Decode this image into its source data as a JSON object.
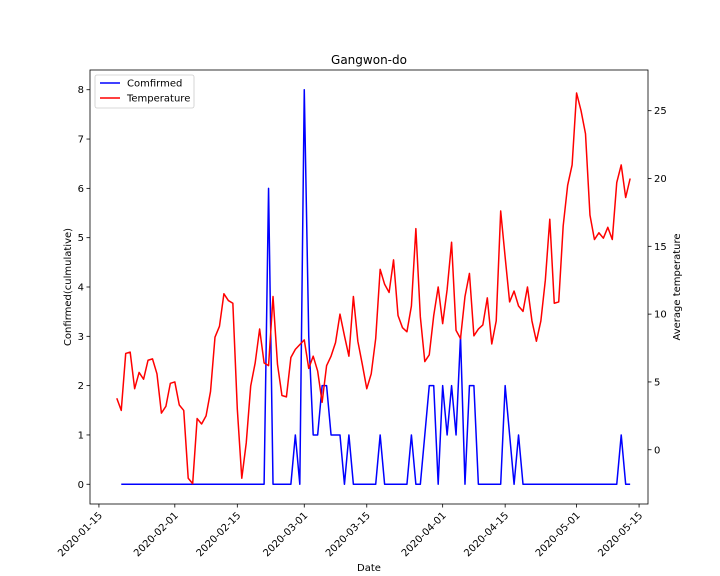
{
  "chart_data": {
    "type": "line",
    "title": "Gangwon-do",
    "xlabel": "Date",
    "ylabel_left": "Confirmed(culmulative)",
    "ylabel_right": "Average temperature",
    "x_ticks": [
      "2020-01-15",
      "2020-02-01",
      "2020-02-15",
      "2020-03-01",
      "2020-03-15",
      "2020-04-01",
      "2020-04-15",
      "2020-05-01",
      "2020-05-15"
    ],
    "y_left_ticks": [
      0,
      1,
      2,
      3,
      4,
      5,
      6,
      7,
      8
    ],
    "y_right_ticks": [
      0,
      5,
      10,
      15,
      20,
      25
    ],
    "xlim": [
      "2020-01-13",
      "2020-05-17"
    ],
    "ylim_left": [
      -0.4,
      8.4
    ],
    "ylim_right": [
      -4.0,
      28.0
    ],
    "legend": {
      "placement": "top-left",
      "entries": [
        "Comfirmed",
        "Temperature"
      ]
    },
    "colors": {
      "Comfirmed": "#0000ff",
      "Temperature": "#ff0000"
    },
    "series": [
      {
        "name": "Comfirmed",
        "axis": "left",
        "points": [
          [
            "2020-01-20",
            0
          ],
          [
            "2020-02-21",
            0
          ],
          [
            "2020-02-22",
            6
          ],
          [
            "2020-02-23",
            0
          ],
          [
            "2020-02-27",
            0
          ],
          [
            "2020-02-28",
            1
          ],
          [
            "2020-02-29",
            0
          ],
          [
            "2020-03-01",
            8
          ],
          [
            "2020-03-02",
            3
          ],
          [
            "2020-03-03",
            1
          ],
          [
            "2020-03-04",
            1
          ],
          [
            "2020-03-05",
            2
          ],
          [
            "2020-03-06",
            2
          ],
          [
            "2020-03-07",
            1
          ],
          [
            "2020-03-09",
            1
          ],
          [
            "2020-03-10",
            0
          ],
          [
            "2020-03-11",
            1
          ],
          [
            "2020-03-12",
            0
          ],
          [
            "2020-03-17",
            0
          ],
          [
            "2020-03-18",
            1
          ],
          [
            "2020-03-19",
            0
          ],
          [
            "2020-03-24",
            0
          ],
          [
            "2020-03-25",
            1
          ],
          [
            "2020-03-26",
            0
          ],
          [
            "2020-03-27",
            0
          ],
          [
            "2020-03-29",
            2
          ],
          [
            "2020-03-30",
            2
          ],
          [
            "2020-03-31",
            0
          ],
          [
            "2020-04-01",
            2
          ],
          [
            "2020-04-02",
            1
          ],
          [
            "2020-04-03",
            2
          ],
          [
            "2020-04-04",
            1
          ],
          [
            "2020-04-05",
            3
          ],
          [
            "2020-04-06",
            0
          ],
          [
            "2020-04-07",
            2
          ],
          [
            "2020-04-08",
            2
          ],
          [
            "2020-04-09",
            0
          ],
          [
            "2020-04-14",
            0
          ],
          [
            "2020-04-15",
            2
          ],
          [
            "2020-04-16",
            1
          ],
          [
            "2020-04-17",
            0
          ],
          [
            "2020-04-18",
            1
          ],
          [
            "2020-04-19",
            0
          ],
          [
            "2020-05-10",
            0
          ],
          [
            "2020-05-11",
            1
          ],
          [
            "2020-05-12",
            0
          ],
          [
            "2020-05-13",
            0
          ]
        ]
      },
      {
        "name": "Temperature",
        "axis": "right",
        "points": [
          [
            "2020-01-19",
            3.8
          ],
          [
            "2020-01-20",
            2.9
          ],
          [
            "2020-01-21",
            7.1
          ],
          [
            "2020-01-22",
            7.2
          ],
          [
            "2020-01-23",
            4.5
          ],
          [
            "2020-01-24",
            5.7
          ],
          [
            "2020-01-25",
            5.2
          ],
          [
            "2020-01-26",
            6.6
          ],
          [
            "2020-01-27",
            6.7
          ],
          [
            "2020-01-28",
            5.6
          ],
          [
            "2020-01-29",
            2.7
          ],
          [
            "2020-01-30",
            3.2
          ],
          [
            "2020-01-31",
            4.9
          ],
          [
            "2020-02-01",
            5.0
          ],
          [
            "2020-02-02",
            3.3
          ],
          [
            "2020-02-03",
            2.9
          ],
          [
            "2020-02-04",
            -2.1
          ],
          [
            "2020-02-05",
            -2.5
          ],
          [
            "2020-02-06",
            2.3
          ],
          [
            "2020-02-07",
            1.9
          ],
          [
            "2020-02-08",
            2.5
          ],
          [
            "2020-02-09",
            4.3
          ],
          [
            "2020-02-10",
            8.3
          ],
          [
            "2020-02-11",
            9.1
          ],
          [
            "2020-02-12",
            11.5
          ],
          [
            "2020-02-13",
            11.0
          ],
          [
            "2020-02-14",
            10.8
          ],
          [
            "2020-02-15",
            3.0
          ],
          [
            "2020-02-16",
            -2.1
          ],
          [
            "2020-02-17",
            0.5
          ],
          [
            "2020-02-18",
            4.7
          ],
          [
            "2020-02-19",
            6.4
          ],
          [
            "2020-02-20",
            8.9
          ],
          [
            "2020-02-21",
            6.4
          ],
          [
            "2020-02-22",
            6.2
          ],
          [
            "2020-02-23",
            11.3
          ],
          [
            "2020-02-24",
            6.3
          ],
          [
            "2020-02-25",
            4.0
          ],
          [
            "2020-02-26",
            3.9
          ],
          [
            "2020-02-27",
            6.8
          ],
          [
            "2020-02-28",
            7.4
          ],
          [
            "2020-03-01",
            8.1
          ],
          [
            "2020-03-02",
            6.0
          ],
          [
            "2020-03-03",
            6.9
          ],
          [
            "2020-03-04",
            5.8
          ],
          [
            "2020-03-05",
            3.5
          ],
          [
            "2020-03-06",
            6.2
          ],
          [
            "2020-03-07",
            6.9
          ],
          [
            "2020-03-08",
            7.9
          ],
          [
            "2020-03-09",
            10.0
          ],
          [
            "2020-03-10",
            8.4
          ],
          [
            "2020-03-11",
            6.9
          ],
          [
            "2020-03-12",
            11.3
          ],
          [
            "2020-03-13",
            8.0
          ],
          [
            "2020-03-14",
            6.3
          ],
          [
            "2020-03-15",
            4.5
          ],
          [
            "2020-03-16",
            5.6
          ],
          [
            "2020-03-17",
            8.2
          ],
          [
            "2020-03-18",
            13.3
          ],
          [
            "2020-03-19",
            12.2
          ],
          [
            "2020-03-20",
            11.6
          ],
          [
            "2020-03-21",
            14.0
          ],
          [
            "2020-03-22",
            9.9
          ],
          [
            "2020-03-23",
            9.0
          ],
          [
            "2020-03-24",
            8.7
          ],
          [
            "2020-03-25",
            10.6
          ],
          [
            "2020-03-26",
            16.3
          ],
          [
            "2020-03-27",
            9.8
          ],
          [
            "2020-03-28",
            6.5
          ],
          [
            "2020-03-29",
            7.0
          ],
          [
            "2020-03-30",
            9.9
          ],
          [
            "2020-03-31",
            12.0
          ],
          [
            "2020-04-01",
            9.3
          ],
          [
            "2020-04-02",
            11.8
          ],
          [
            "2020-04-03",
            15.3
          ],
          [
            "2020-04-04",
            8.8
          ],
          [
            "2020-04-05",
            8.2
          ],
          [
            "2020-04-06",
            11.3
          ],
          [
            "2020-04-07",
            13.0
          ],
          [
            "2020-04-08",
            8.4
          ],
          [
            "2020-04-09",
            8.9
          ],
          [
            "2020-04-10",
            9.2
          ],
          [
            "2020-04-11",
            11.2
          ],
          [
            "2020-04-12",
            7.8
          ],
          [
            "2020-04-13",
            9.5
          ],
          [
            "2020-04-14",
            17.6
          ],
          [
            "2020-04-15",
            14.2
          ],
          [
            "2020-04-16",
            10.9
          ],
          [
            "2020-04-17",
            11.7
          ],
          [
            "2020-04-18",
            10.6
          ],
          [
            "2020-04-19",
            10.2
          ],
          [
            "2020-04-20",
            12.0
          ],
          [
            "2020-04-21",
            9.5
          ],
          [
            "2020-04-22",
            8.0
          ],
          [
            "2020-04-23",
            9.5
          ],
          [
            "2020-04-24",
            12.5
          ],
          [
            "2020-04-25",
            17.0
          ],
          [
            "2020-04-26",
            10.8
          ],
          [
            "2020-04-27",
            10.9
          ],
          [
            "2020-04-28",
            16.5
          ],
          [
            "2020-04-29",
            19.5
          ],
          [
            "2020-04-30",
            21.0
          ],
          [
            "2020-05-01",
            26.3
          ],
          [
            "2020-05-02",
            25.0
          ],
          [
            "2020-05-03",
            23.3
          ],
          [
            "2020-05-04",
            17.3
          ],
          [
            "2020-05-05",
            15.5
          ],
          [
            "2020-05-06",
            16.0
          ],
          [
            "2020-05-07",
            15.6
          ],
          [
            "2020-05-08",
            16.4
          ],
          [
            "2020-05-09",
            15.5
          ],
          [
            "2020-05-10",
            19.7
          ],
          [
            "2020-05-11",
            21.0
          ],
          [
            "2020-05-12",
            18.6
          ],
          [
            "2020-05-13",
            20.0
          ]
        ]
      }
    ]
  }
}
